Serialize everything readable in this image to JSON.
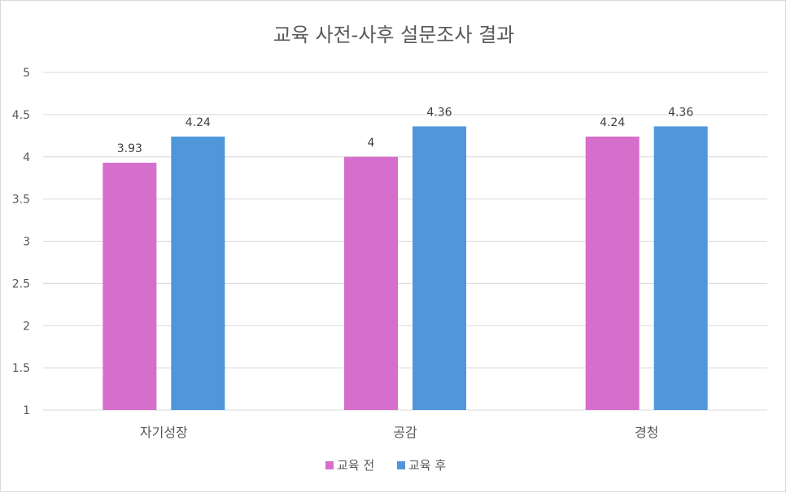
{
  "chart_data": {
    "type": "bar",
    "title": "교육 사전-사후 설문조사 결과",
    "categories": [
      "자기성장",
      "공감",
      "경청"
    ],
    "series": [
      {
        "name": "교육 전",
        "values": [
          3.93,
          4,
          4.24
        ],
        "labels": [
          "3.93",
          "4",
          "4.24"
        ],
        "color": "#D66FCB"
      },
      {
        "name": "교육 후",
        "values": [
          4.24,
          4.36,
          4.36
        ],
        "labels": [
          "4.24",
          "4.36",
          "4.36"
        ],
        "color": "#4F96DB"
      }
    ],
    "yticks": [
      "1",
      "1.5",
      "2",
      "2.5",
      "3",
      "3.5",
      "4",
      "4.5",
      "5"
    ],
    "ylim": [
      1,
      5
    ],
    "grid": true,
    "legend_position": "bottom"
  }
}
